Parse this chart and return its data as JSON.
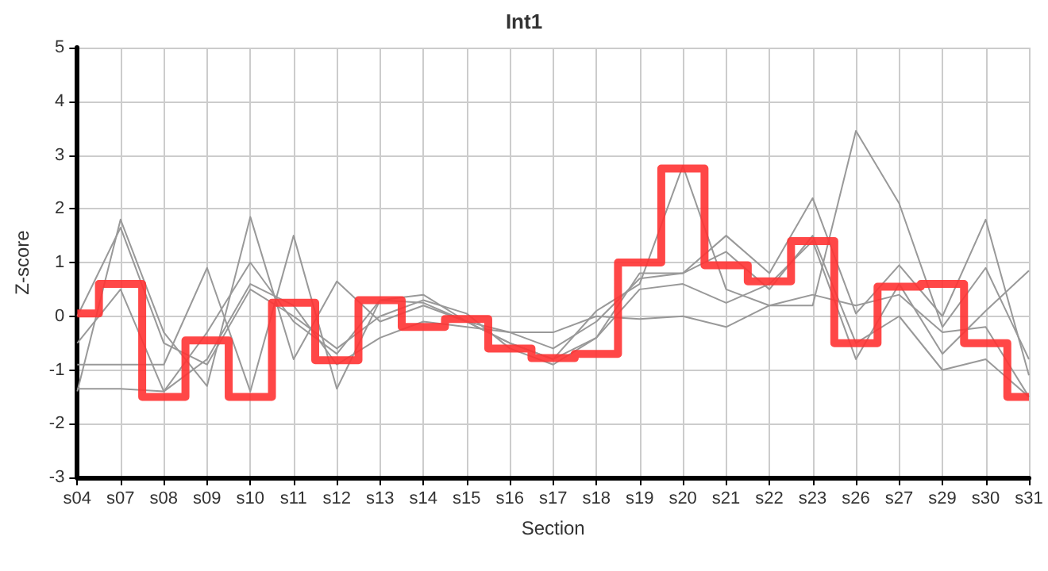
{
  "chart_data": {
    "type": "line",
    "title": "Int1",
    "xlabel": "Section",
    "ylabel": "Z-score",
    "categories": [
      "s04",
      "s07",
      "s08",
      "s09",
      "s10",
      "s11",
      "s12",
      "s13",
      "s14",
      "s15",
      "s16",
      "s17",
      "s18",
      "s19",
      "s20",
      "s21",
      "s22",
      "s23",
      "s26",
      "s27",
      "s29",
      "s30",
      "s31"
    ],
    "ylim": [
      -3,
      5
    ],
    "yticks": [
      -3,
      -2,
      -1,
      0,
      1,
      2,
      3,
      4,
      5
    ],
    "grid": true,
    "marker": "none",
    "series": [
      {
        "color": "#999999",
        "values": [
          -1.4,
          1.8,
          -0.3,
          -1.3,
          1.85,
          -0.8,
          0.65,
          -0.1,
          0.2,
          -0.1,
          -0.3,
          -0.6,
          -0.1,
          0.7,
          0.8,
          1.5,
          0.8,
          2.2,
          0.05,
          0.95,
          0.0,
          1.8,
          -1.1
        ]
      },
      {
        "color": "#999999",
        "values": [
          -0.9,
          -0.9,
          -0.9,
          0.9,
          -1.4,
          1.5,
          -1.35,
          0.3,
          0.4,
          -0.1,
          -0.5,
          -0.8,
          0.1,
          0.6,
          2.8,
          0.5,
          0.2,
          0.2,
          3.45,
          2.1,
          -0.2,
          0.9,
          -0.8
        ]
      },
      {
        "color": "#999999",
        "values": [
          -1.35,
          -1.35,
          -1.4,
          -0.3,
          1.0,
          -0.1,
          -0.7,
          0.3,
          0.25,
          -0.1,
          -0.5,
          -0.8,
          -0.4,
          0.8,
          0.8,
          1.2,
          0.5,
          1.5,
          -0.5,
          0.0,
          -1.0,
          -0.8,
          -1.5
        ]
      },
      {
        "color": "#999999",
        "values": [
          0.0,
          1.65,
          -0.5,
          -0.9,
          0.5,
          0.0,
          -0.6,
          0.0,
          0.3,
          0.05,
          -0.6,
          -0.9,
          -0.4,
          0.5,
          0.6,
          0.25,
          0.6,
          1.4,
          -0.8,
          0.6,
          -0.7,
          0.1,
          0.85
        ]
      },
      {
        "color": "#999999",
        "values": [
          -0.5,
          0.5,
          -1.4,
          -0.8,
          0.6,
          0.2,
          -0.9,
          -0.4,
          -0.1,
          -0.2,
          -0.3,
          -0.3,
          0.0,
          -0.05,
          0.0,
          -0.2,
          0.2,
          0.4,
          0.2,
          0.4,
          -0.3,
          -0.2,
          -1.5
        ]
      },
      {
        "type": "step",
        "color": "#ff3333",
        "values": [
          0.05,
          0.6,
          -1.5,
          -0.45,
          -1.5,
          0.25,
          -0.82,
          0.3,
          -0.2,
          -0.05,
          -0.6,
          -0.78,
          -0.7,
          1.0,
          2.75,
          0.95,
          0.65,
          1.4,
          -0.5,
          0.55,
          0.6,
          -0.5,
          -1.5
        ]
      }
    ]
  }
}
